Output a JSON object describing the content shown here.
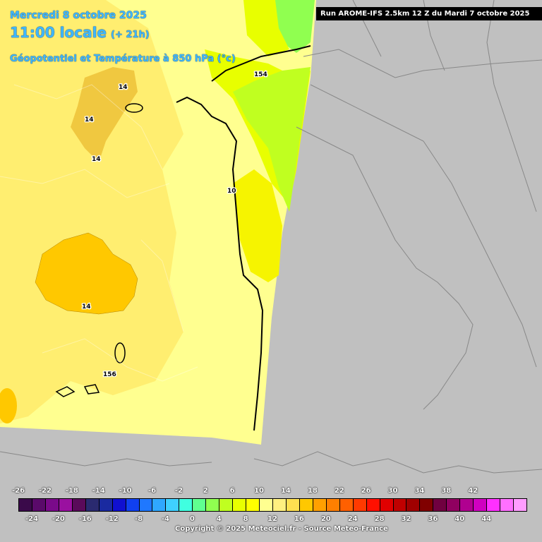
{
  "header": {
    "date": "Mercredi 8 octobre 2025",
    "time": "11:00 locale",
    "lead": "(+ 21h)",
    "parameter": "Géopotentiel et Température à 850 hPa (°c)"
  },
  "run_banner": "Run AROME-IFS 2.5km 12 Z du Mardi 7 octobre 2025",
  "contour_labels": [
    "14",
    "14",
    "14",
    "10",
    "14",
    "154",
    "156"
  ],
  "legend": {
    "top_labels": [
      "-26",
      "-22",
      "-18",
      "-14",
      "-10",
      "-6",
      "-2",
      "2",
      "6",
      "10",
      "14",
      "18",
      "22",
      "26",
      "30",
      "34",
      "38",
      "42"
    ],
    "bottom_labels": [
      "-24",
      "-20",
      "-16",
      "-12",
      "-8",
      "-4",
      "0",
      "4",
      "8",
      "12",
      "16",
      "20",
      "24",
      "28",
      "32",
      "36",
      "40",
      "44"
    ],
    "colors": [
      "#3a0a4a",
      "#5a0a6a",
      "#7a0a8a",
      "#9a10a0",
      "#5a0a5a",
      "#2a2a70",
      "#1a2aa0",
      "#1010d0",
      "#1040f0",
      "#1f78ff",
      "#2fa8ff",
      "#3fd0ff",
      "#40ffe0",
      "#60ff90",
      "#90ff50",
      "#c0ff20",
      "#e8ff00",
      "#ffff00",
      "#ffff90",
      "#fff080",
      "#ffe050",
      "#ffc800",
      "#ffa000",
      "#ff8000",
      "#ff6000",
      "#ff3a00",
      "#ff1000",
      "#e00000",
      "#c00000",
      "#a00000",
      "#800000",
      "#700040",
      "#900060",
      "#b00090",
      "#d000c0",
      "#ff30ff",
      "#ff70ff",
      "#ff9cff"
    ]
  },
  "copyright": "Copyright © 2025 Meteociel.fr - Source Meteo-France"
}
